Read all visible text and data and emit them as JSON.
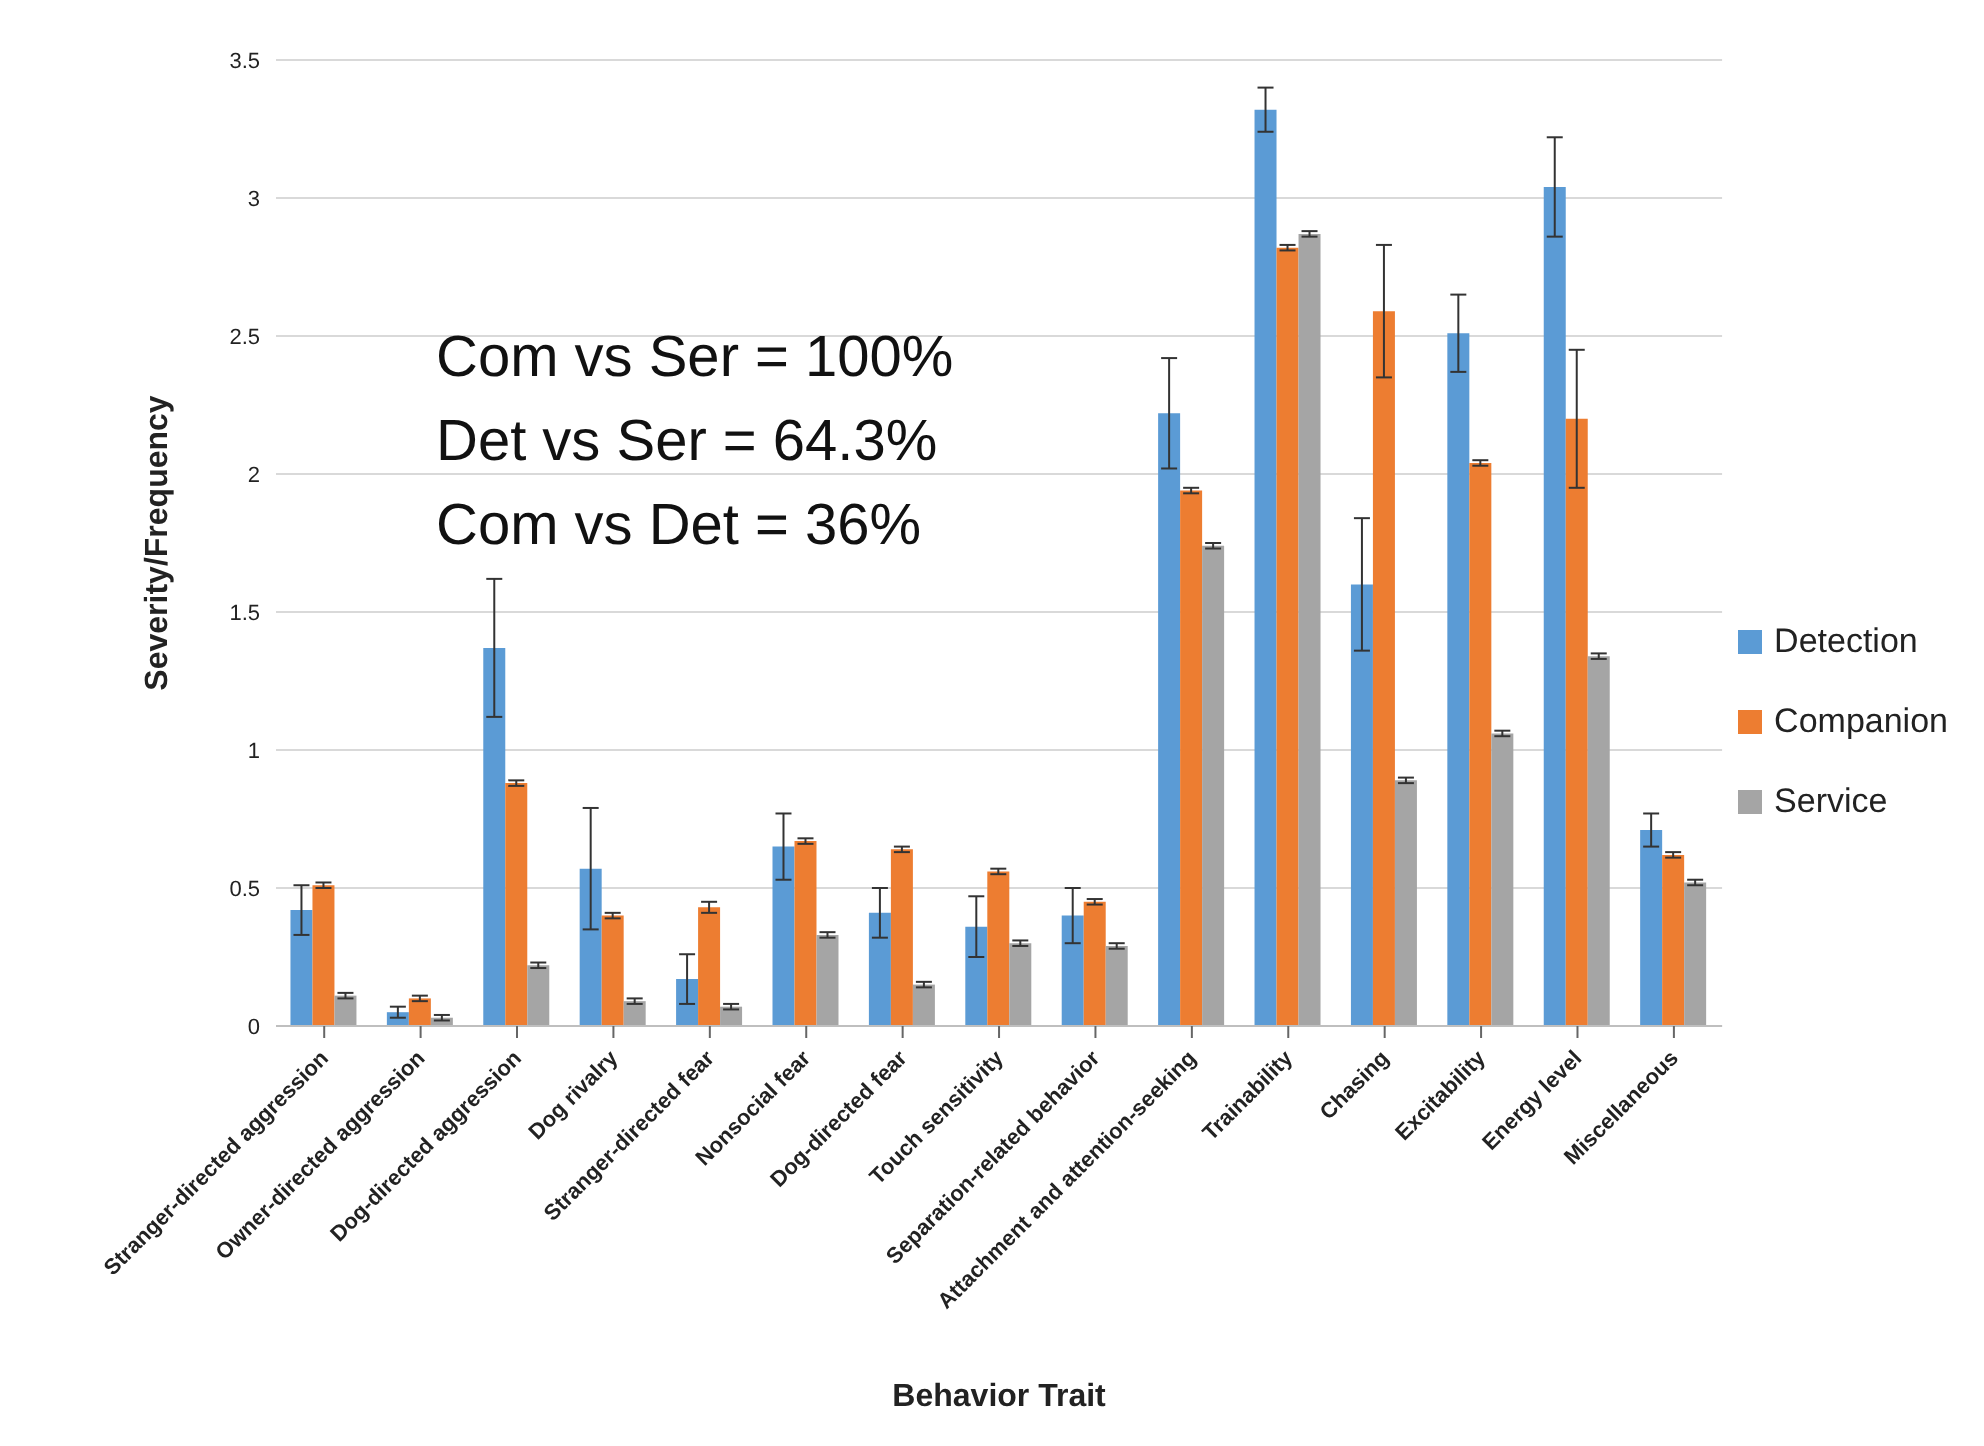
{
  "chart_data": {
    "type": "bar",
    "xlabel": "Behavior Trait",
    "ylabel": "Severity/Frequency",
    "categories": [
      "Stranger-directed aggression",
      "Owner-directed aggression",
      "Dog-directed aggression",
      "Dog rivalry",
      "Stranger-directed fear",
      "Nonsocial fear",
      "Dog-directed fear",
      "Touch sensitivity",
      "Separation-related behavior",
      "Attachment and attention-seeking",
      "Trainability",
      "Chasing",
      "Excitability",
      "Energy level",
      "Miscellaneous"
    ],
    "series": [
      {
        "name": "Detection",
        "color": "#5b9bd5",
        "values": [
          0.42,
          0.05,
          1.37,
          0.57,
          0.17,
          0.65,
          0.41,
          0.36,
          0.4,
          2.22,
          3.32,
          1.6,
          2.51,
          3.04,
          0.71
        ],
        "errors": [
          0.09,
          0.02,
          0.25,
          0.22,
          0.09,
          0.12,
          0.09,
          0.11,
          0.1,
          0.2,
          0.08,
          0.24,
          0.14,
          0.18,
          0.06
        ]
      },
      {
        "name": "Companion",
        "color": "#ed7d31",
        "values": [
          0.51,
          0.1,
          0.88,
          0.4,
          0.43,
          0.67,
          0.64,
          0.56,
          0.45,
          1.94,
          2.82,
          2.59,
          2.04,
          2.2,
          0.62
        ],
        "errors": [
          0.01,
          0.01,
          0.01,
          0.01,
          0.02,
          0.01,
          0.01,
          0.01,
          0.01,
          0.01,
          0.01,
          0.24,
          0.01,
          0.25,
          0.01
        ]
      },
      {
        "name": "Service",
        "color": "#a5a5a5",
        "values": [
          0.11,
          0.03,
          0.22,
          0.09,
          0.07,
          0.33,
          0.15,
          0.3,
          0.29,
          1.74,
          2.87,
          0.89,
          1.06,
          1.34,
          0.52
        ],
        "errors": [
          0.01,
          0.01,
          0.01,
          0.01,
          0.01,
          0.01,
          0.01,
          0.01,
          0.01,
          0.01,
          0.01,
          0.01,
          0.01,
          0.01,
          0.01
        ]
      }
    ],
    "ylim": [
      0,
      3.5
    ],
    "yticks": [
      0,
      0.5,
      1,
      1.5,
      2,
      2.5,
      3,
      3.5
    ],
    "grid": "y",
    "legend": "right",
    "annotations": [
      "Com vs Ser = 100%",
      "Det vs Ser = 64.3%",
      "Com vs Det = 36%"
    ]
  }
}
